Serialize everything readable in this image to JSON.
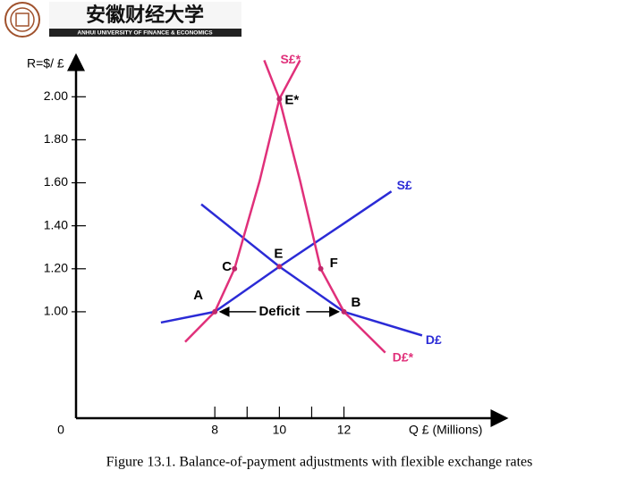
{
  "header": {
    "university_cn": "安徽财经大学",
    "university_en": "ANHUI UNIVERSITY OF FINANCE & ECONOMICS"
  },
  "chart_data": {
    "type": "line",
    "y_label": "R=$/ £",
    "x_label": "Q £ (Millions)",
    "origin_label": "0",
    "caption": "Figure 13.1. Balance-of-payment adjustments with flexible exchange rates",
    "xlim": [
      3.7,
      17.0
    ],
    "ylim": [
      0.505,
      2.18
    ],
    "xticks": [
      8,
      10,
      12
    ],
    "minor_xticks": [
      9,
      11
    ],
    "yticks": [
      {
        "value": 1.0,
        "label": "1.00"
      },
      {
        "value": 1.2,
        "label": "1.20"
      },
      {
        "value": 1.4,
        "label": "1.40"
      },
      {
        "value": 1.6,
        "label": "1.60"
      },
      {
        "value": 1.8,
        "label": "1.80"
      },
      {
        "value": 2.0,
        "label": "2.00"
      }
    ],
    "series": [
      {
        "name": "S£",
        "color": "#2b2bd6",
        "x": [
          6.33,
          8,
          10,
          11.89,
          13.47
        ],
        "values": [
          0.95,
          1.0,
          1.21,
          1.4,
          1.56
        ]
      },
      {
        "name": "D£",
        "color": "#2b2bd6",
        "x": [
          7.58,
          8.83,
          10,
          12,
          14.42
        ],
        "values": [
          1.5,
          1.35,
          1.21,
          1.0,
          0.89
        ]
      },
      {
        "name": "S£*",
        "color": "#e0307a",
        "x": [
          7.08,
          8,
          8.61,
          9.39,
          10,
          10.64
        ],
        "values": [
          0.86,
          1.0,
          1.2,
          1.61,
          1.99,
          2.17
        ]
      },
      {
        "name": "D£*",
        "color": "#e0307a",
        "x": [
          9.53,
          10,
          10.64,
          11.28,
          12,
          13.28
        ],
        "values": [
          2.17,
          1.99,
          1.61,
          1.2,
          1.0,
          0.81
        ]
      }
    ],
    "points": [
      {
        "label": "A",
        "x": 8,
        "y": 1.0
      },
      {
        "label": "B",
        "x": 12,
        "y": 1.0
      },
      {
        "label": "C",
        "x": 8.61,
        "y": 1.2
      },
      {
        "label": "E",
        "x": 10,
        "y": 1.21
      },
      {
        "label": "F",
        "x": 11.28,
        "y": 1.2
      },
      {
        "label": "E*",
        "x": 10,
        "y": 1.99
      }
    ],
    "deficit_label": "Deficit"
  }
}
